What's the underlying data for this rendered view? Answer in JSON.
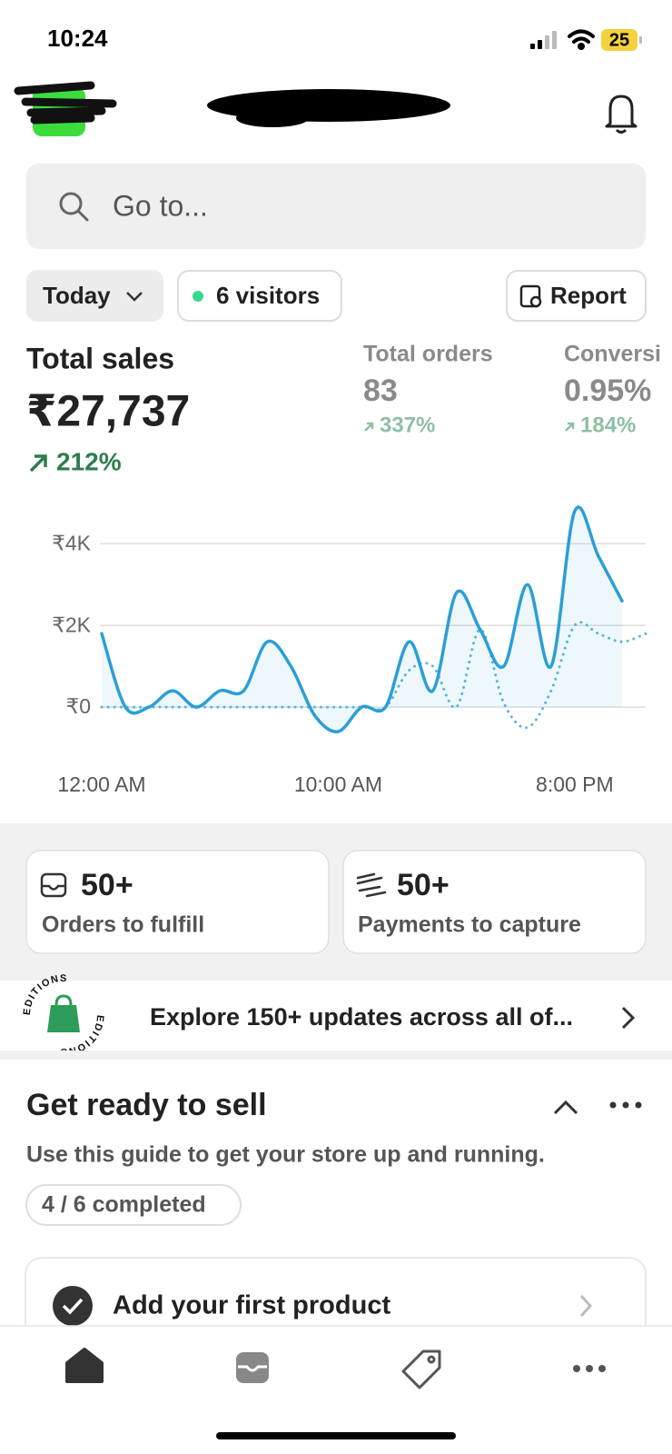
{
  "status_bar": {
    "time": "10:24",
    "battery": "25"
  },
  "search": {
    "placeholder": "Go to..."
  },
  "filters": {
    "period": "Today",
    "visitors": "6 visitors",
    "report": "Report"
  },
  "metrics": [
    {
      "label": "Total sales",
      "value": "₹27,737",
      "change": "212%"
    },
    {
      "label": "Total orders",
      "value": "83",
      "change": "337%"
    },
    {
      "label": "Conversi",
      "value": "0.95%",
      "change": "184%"
    }
  ],
  "chart_data": {
    "type": "line",
    "x": [
      0,
      1,
      2,
      3,
      4,
      5,
      6,
      7,
      8,
      9,
      10,
      11,
      12,
      13,
      14,
      15,
      16,
      17,
      18,
      19,
      20,
      21,
      22,
      23
    ],
    "xlim": [
      0,
      23
    ],
    "xticks": [
      {
        "value": 0,
        "label": "12:00 AM"
      },
      {
        "value": 10,
        "label": "10:00 AM"
      },
      {
        "value": 20,
        "label": "8:00 PM"
      }
    ],
    "ylim": [
      -800,
      5000
    ],
    "yticks": [
      {
        "value": 0,
        "label": "₹0"
      },
      {
        "value": 2000,
        "label": "₹2K"
      },
      {
        "value": 4000,
        "label": "₹4K"
      }
    ],
    "grid": true,
    "series": [
      {
        "color": "#2a9fd6",
        "line_style": "solid",
        "area": true,
        "values": [
          1800,
          0,
          0,
          400,
          0,
          400,
          400,
          1600,
          1000,
          -200,
          -600,
          0,
          0,
          1600,
          400,
          2800,
          1900,
          1000,
          3000,
          1000,
          4800,
          3700,
          2600,
          null
        ]
      },
      {
        "color": "#5ab8de",
        "line_style": "dotted",
        "area": false,
        "values": [
          0,
          0,
          0,
          0,
          0,
          0,
          0,
          0,
          0,
          0,
          0,
          0,
          0,
          900,
          1000,
          0,
          1900,
          100,
          -500,
          400,
          2000,
          1800,
          1600,
          1800
        ]
      }
    ]
  },
  "tasks": [
    {
      "count": "50+",
      "label": "Orders to fulfill"
    },
    {
      "count": "50+",
      "label": "Payments to capture"
    }
  ],
  "banner": {
    "badge": "EDITIONS",
    "text": "Explore 150+ updates across all of..."
  },
  "guide": {
    "title": "Get ready to sell",
    "subtitle": "Use this guide to get your store up and running.",
    "progress": "4 / 6 completed",
    "steps": [
      "Add your first product"
    ]
  }
}
